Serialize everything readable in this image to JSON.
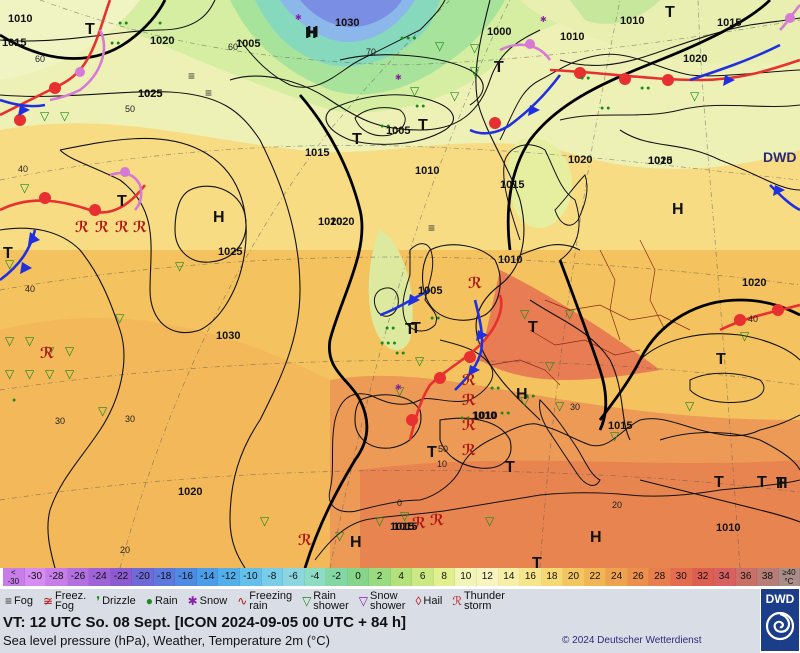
{
  "map": {
    "isobar_labels": [
      "1010",
      "1015",
      "1020",
      "1025",
      "1030",
      "1005",
      "1000",
      "1015",
      "1010",
      "1020",
      "1025",
      "1030",
      "1005",
      "1010",
      "1015",
      "1020",
      "1025",
      "1010",
      "1015",
      "1020",
      "1005",
      "1010",
      "1015",
      "1010",
      "1020",
      "1010",
      "1020",
      "1015",
      "1010",
      "1025",
      "1020",
      "1010",
      "1015"
    ],
    "pressure_centers": [
      "T",
      "H",
      "H",
      "T",
      "T",
      "T",
      "T",
      "H",
      "T",
      "T",
      "T",
      "H",
      "T",
      "T",
      "T",
      "T",
      "H",
      "T",
      "T",
      "T",
      "H",
      "H",
      "T",
      "H",
      "T"
    ],
    "latitude_labels": [
      "60",
      "50",
      "70",
      "60",
      "40",
      "40",
      "30",
      "30",
      "20",
      "20",
      "50",
      "40",
      "30",
      "0",
      "10"
    ],
    "watermark": "DWD"
  },
  "temperature_scale": {
    "values": [
      "<\n-30",
      "-30",
      "-28",
      "-26",
      "-24",
      "-22",
      "-20",
      "-18",
      "-16",
      "-14",
      "-12",
      "-10",
      "-8",
      "-6",
      "-4",
      "-2",
      "0",
      "2",
      "4",
      "6",
      "8",
      "10",
      "12",
      "14",
      "16",
      "18",
      "20",
      "22",
      "24",
      "26",
      "28",
      "30",
      "32",
      "34",
      "36",
      "38",
      "≥40\n°C"
    ],
    "colors": [
      "#c77ee8",
      "#d68cf2",
      "#c77ee8",
      "#b270e0",
      "#9f63d8",
      "#8c5bd1",
      "#6e6ad6",
      "#5d79dd",
      "#4f8be3",
      "#4b9de8",
      "#52afe9",
      "#64c0ea",
      "#78cde8",
      "#8cd6df",
      "#8fdcc5",
      "#82d7a3",
      "#86d58a",
      "#9bdb7f",
      "#b3e27c",
      "#cce884",
      "#e2ef8f",
      "#f2f5b8",
      "#f7f4c0",
      "#f8efa6",
      "#f7e58b",
      "#f6d874",
      "#f4c660",
      "#f2b553",
      "#efa24d",
      "#ec904c",
      "#e87e4d",
      "#e46c4f",
      "#df5e52",
      "#d86060",
      "#c97168",
      "#b77e78",
      "#a98d88"
    ]
  },
  "legend": [
    {
      "icon": "fog-icon",
      "glyph": "≡",
      "color": "#333333",
      "label": "Fog"
    },
    {
      "icon": "freezing-fog-icon",
      "glyph": "≆",
      "color": "#b01818",
      "label": "Freez.\nFog"
    },
    {
      "icon": "drizzle-icon",
      "glyph": "❜",
      "color": "#1a8a1a",
      "label": "Drizzle"
    },
    {
      "icon": "rain-icon",
      "glyph": "●",
      "color": "#1a8a1a",
      "label": "Rain"
    },
    {
      "icon": "snow-icon",
      "glyph": "✱",
      "color": "#8a1ea8",
      "label": "Snow"
    },
    {
      "icon": "freezing-rain-icon",
      "glyph": "∿",
      "color": "#b01818",
      "label": "Freezing\nrain"
    },
    {
      "icon": "rain-shower-icon",
      "glyph": "▽",
      "color": "#1a8a1a",
      "label": "Rain\nshower"
    },
    {
      "icon": "snow-shower-icon",
      "glyph": "▽",
      "color": "#8a1ea8",
      "label": "Snow\nshower"
    },
    {
      "icon": "hail-icon",
      "glyph": "◊",
      "color": "#b01818",
      "label": "Hail"
    },
    {
      "icon": "thunderstorm-icon",
      "glyph": "ℛ",
      "color": "#b01818",
      "label": "Thunder\nstorm"
    }
  ],
  "info": {
    "valid_time": "VT: 12 UTC So.  08 Sept. [ICON 2024-09-05  00 UTC + 84 h]",
    "description": "Sea level pressure (hPa), Weather, Temperature 2m (°C)",
    "copyright": "© 2024 Deutscher Wetterdienst"
  },
  "logo": {
    "text": "DWD"
  }
}
